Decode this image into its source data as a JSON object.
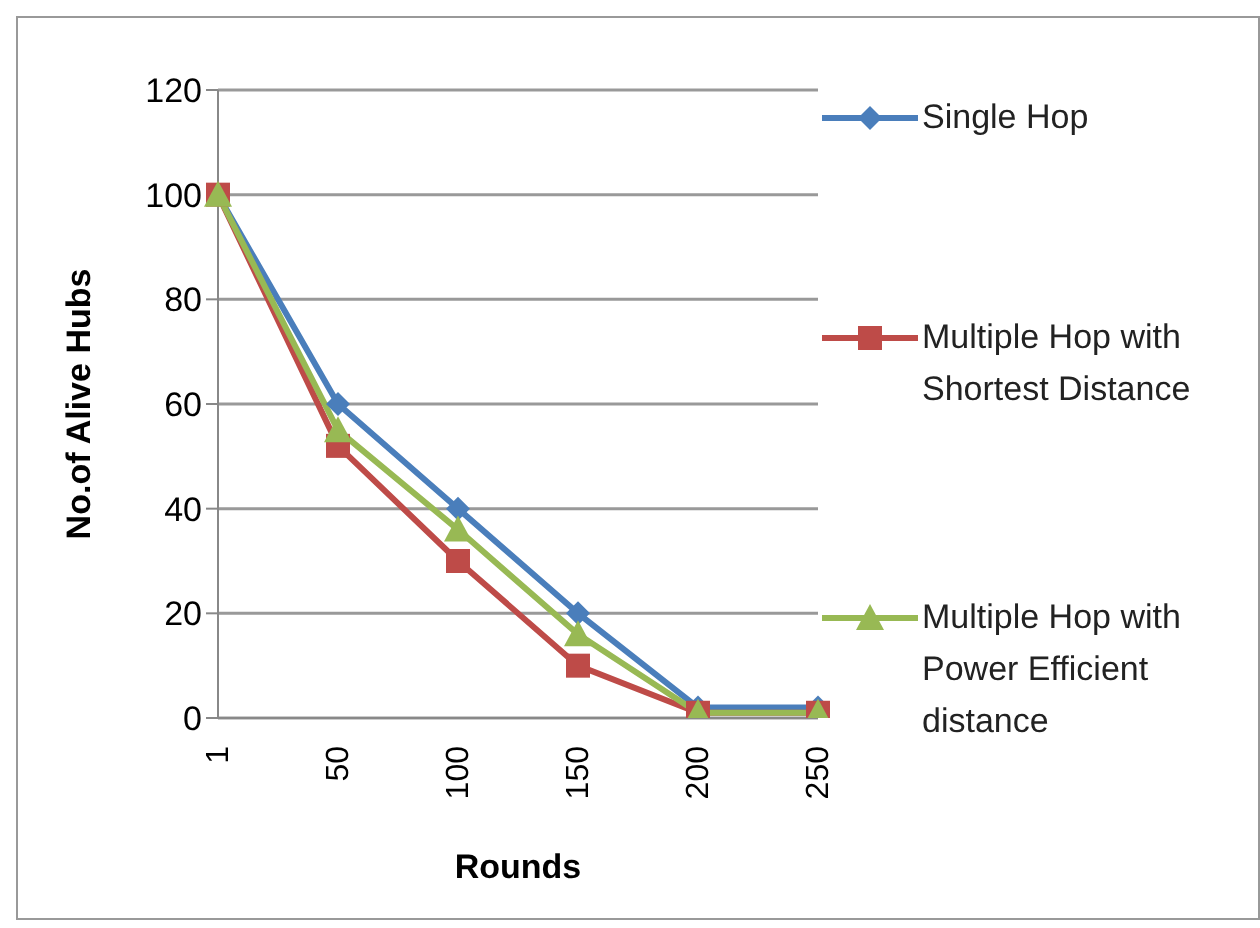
{
  "chart_data": {
    "type": "line",
    "xlabel": "Rounds",
    "ylabel": "No.of Alive Hubs",
    "categories": [
      "1",
      "50",
      "100",
      "150",
      "200",
      "250"
    ],
    "series": [
      {
        "name": "Single Hop",
        "color": "#4a7ebb",
        "marker": "diamond",
        "values": [
          100,
          60,
          40,
          20,
          2,
          2
        ]
      },
      {
        "name": "Multiple Hop with Shortest Distance",
        "color": "#be4b48",
        "marker": "square",
        "values": [
          100,
          52,
          30,
          10,
          1,
          1
        ]
      },
      {
        "name": "Multiple Hop with Power Efficient distance",
        "color": "#98b954",
        "marker": "triangle",
        "values": [
          100,
          55,
          36,
          16,
          1,
          1
        ]
      }
    ],
    "ylim": [
      0,
      120
    ],
    "yticks": [
      0,
      20,
      40,
      60,
      80,
      100,
      120
    ],
    "grid": "y",
    "legend": "right"
  }
}
